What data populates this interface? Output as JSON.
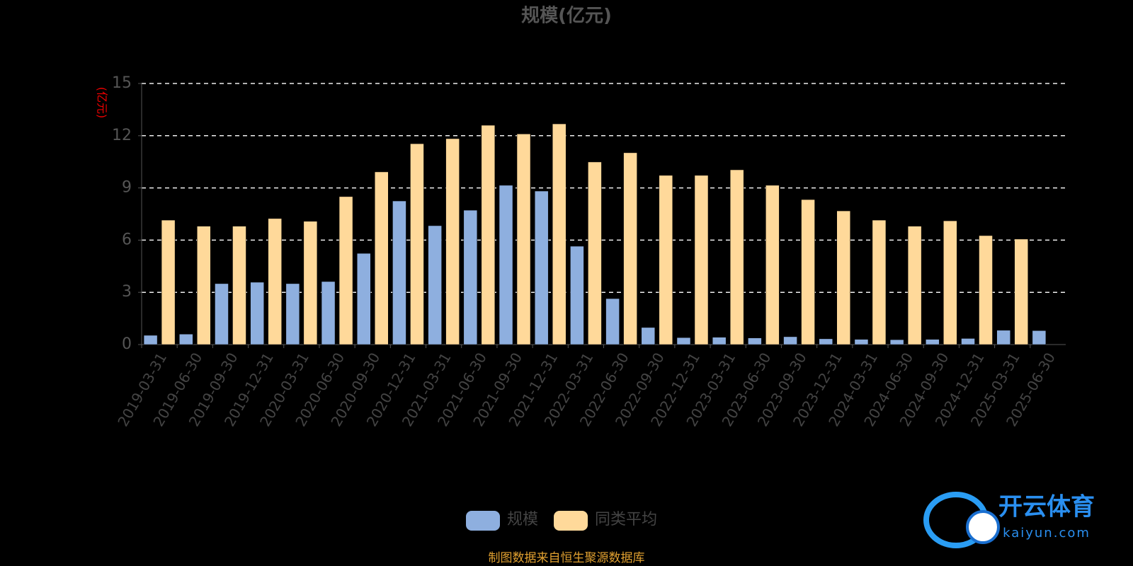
{
  "chart_data": {
    "type": "bar",
    "title": "规模(亿元)",
    "y_label": "(亿元)",
    "categories": [
      "2019-03-31",
      "2019-06-30",
      "2019-09-30",
      "2019-12-31",
      "2020-03-31",
      "2020-06-30",
      "2020-09-30",
      "2020-12-31",
      "2021-03-31",
      "2021-06-30",
      "2021-09-30",
      "2021-12-31",
      "2022-03-31",
      "2022-06-30",
      "2022-09-30",
      "2022-12-31",
      "2023-03-31",
      "2023-06-30",
      "2023-09-30",
      "2023-12-31",
      "2024-03-31",
      "2024-06-30",
      "2024-09-30",
      "2024-12-31",
      "2025-03-31",
      "2025-06-30"
    ],
    "series": [
      {
        "name": "规模",
        "color": "#8eafdf",
        "values": [
          0.53,
          0.6,
          3.5,
          3.58,
          3.5,
          3.62,
          5.24,
          8.25,
          6.83,
          7.72,
          9.15,
          8.82,
          5.65,
          2.64,
          0.98,
          0.4,
          0.42,
          0.38,
          0.45,
          0.33,
          0.3,
          0.28,
          0.3,
          0.35,
          0.82,
          0.8
        ]
      },
      {
        "name": "同类平均",
        "color": "#ffd99a",
        "values": [
          7.15,
          6.8,
          6.8,
          7.24,
          7.08,
          8.5,
          9.92,
          11.54,
          11.83,
          12.6,
          12.1,
          12.68,
          10.49,
          11.02,
          9.72,
          9.72,
          10.04,
          9.15,
          8.33,
          7.68,
          7.15,
          6.8,
          7.11,
          6.26,
          6.06,
          null
        ]
      }
    ],
    "ylim": [
      0,
      15
    ],
    "yticks": [
      0,
      3,
      6,
      9,
      12,
      15
    ],
    "grid": true,
    "source": "制图数据来自恒生聚源数据库",
    "watermark": {
      "brand": "开云体育",
      "site": "kaiyun.com"
    }
  }
}
